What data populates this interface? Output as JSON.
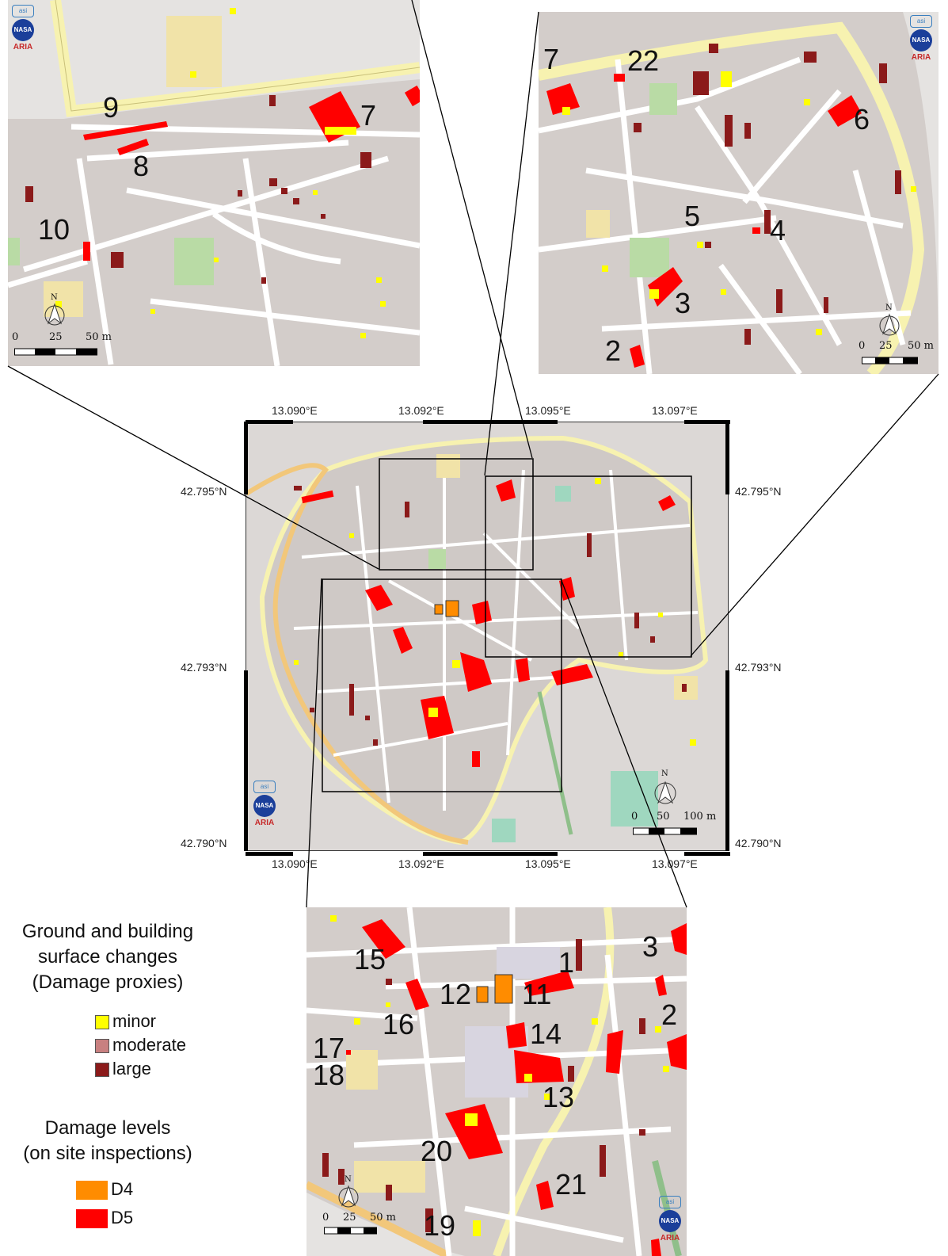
{
  "inset_top_left": {
    "labels": [
      "9",
      "8",
      "7",
      "10"
    ],
    "north": "N",
    "scale": {
      "s0": "0",
      "s1": "25",
      "s2": "50 m"
    },
    "logo": {
      "asi": "asi",
      "nasa": "NASA",
      "aria": "ARIA"
    }
  },
  "inset_top_right": {
    "labels": [
      "7",
      "22",
      "6",
      "5",
      "4",
      "3",
      "2"
    ],
    "north": "N",
    "scale": {
      "s0": "0",
      "s1": "25",
      "s2": "50 m"
    },
    "logo": {
      "asi": "asi",
      "nasa": "NASA",
      "aria": "ARIA"
    }
  },
  "main_map": {
    "lon_ticks": [
      "13.090°E",
      "13.092°E",
      "13.095°E",
      "13.097°E"
    ],
    "lat_ticks": [
      "42.795°N",
      "42.793°N",
      "42.790°N"
    ],
    "north": "N",
    "scale": {
      "s0": "0",
      "s1": "50",
      "s2": "100 m"
    },
    "logo": {
      "asi": "asi",
      "nasa": "NASA",
      "aria": "ARIA"
    }
  },
  "inset_bottom": {
    "labels": [
      "15",
      "1",
      "3",
      "12",
      "11",
      "2",
      "16",
      "14",
      "17",
      "18",
      "13",
      "20",
      "21",
      "19"
    ],
    "north": "N",
    "scale": {
      "s0": "0",
      "s1": "25",
      "s2": "50 m"
    },
    "logo": {
      "asi": "asi",
      "nasa": "NASA",
      "aria": "ARIA"
    }
  },
  "legend": {
    "proxies_title_1": "Ground and building",
    "proxies_title_2": "surface changes",
    "proxies_title_3": "(Damage proxies)",
    "minor": "minor",
    "moderate": "moderate",
    "large": "large",
    "levels_title_1": "Damage levels",
    "levels_title_2": "(on site inspections)",
    "d4": "D4",
    "d5": "D5",
    "colors": {
      "minor": "#ffff00",
      "moderate": "#c88080",
      "large": "#8b1a1a",
      "d4": "#ff8c00",
      "d5": "#ff0000"
    }
  }
}
